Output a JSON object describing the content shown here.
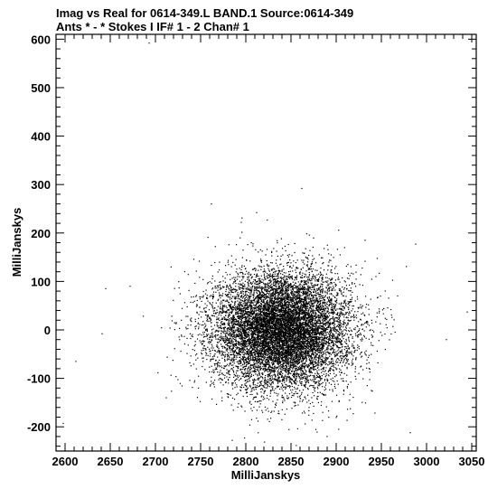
{
  "header": {
    "title_line1": "Imag vs Real for 0614-349.L BAND.1   Source:0614-349",
    "title_line2": "Ants * - *     Stokes I   IF# 1 - 2   Chan# 1"
  },
  "chart_data": {
    "type": "scatter",
    "title": "Imag vs Real for 0614-349.L BAND.1   Source:0614-349",
    "subtitle": "Ants * - *     Stokes I   IF# 1 - 2   Chan# 1",
    "xlabel": "MilliJanskys",
    "ylabel": "MilliJanskys",
    "xlim": [
      2590,
      3055
    ],
    "ylim": [
      -250,
      610
    ],
    "xticks": [
      2600,
      2650,
      2700,
      2750,
      2800,
      2850,
      2900,
      2950,
      3000,
      3050
    ],
    "yticks": [
      -200,
      -100,
      0,
      100,
      200,
      300,
      400,
      500,
      600
    ],
    "grid": false,
    "legend": "none",
    "point_color": "#000000",
    "cloud": {
      "center_x": 2840,
      "center_y": 0,
      "std_x": 38,
      "std_y": 60,
      "count": 11000
    },
    "outliers": [
      {
        "x": 2693,
        "y": 592
      },
      {
        "x": 2862,
        "y": 292
      },
      {
        "x": 2762,
        "y": 260
      },
      {
        "x": 2812,
        "y": 242
      },
      {
        "x": 2795,
        "y": 222
      },
      {
        "x": 2932,
        "y": 185
      },
      {
        "x": 2988,
        "y": 177
      },
      {
        "x": 2645,
        "y": 85
      },
      {
        "x": 2672,
        "y": 90
      },
      {
        "x": 2641,
        "y": -8
      },
      {
        "x": 2612,
        "y": -65
      },
      {
        "x": 3022,
        "y": -20
      },
      {
        "x": 3045,
        "y": 37
      },
      {
        "x": 2598,
        "y": -193
      },
      {
        "x": 2982,
        "y": -212
      },
      {
        "x": 2785,
        "y": -228
      },
      {
        "x": 2968,
        "y": 70
      },
      {
        "x": 2712,
        "y": -140
      }
    ]
  }
}
